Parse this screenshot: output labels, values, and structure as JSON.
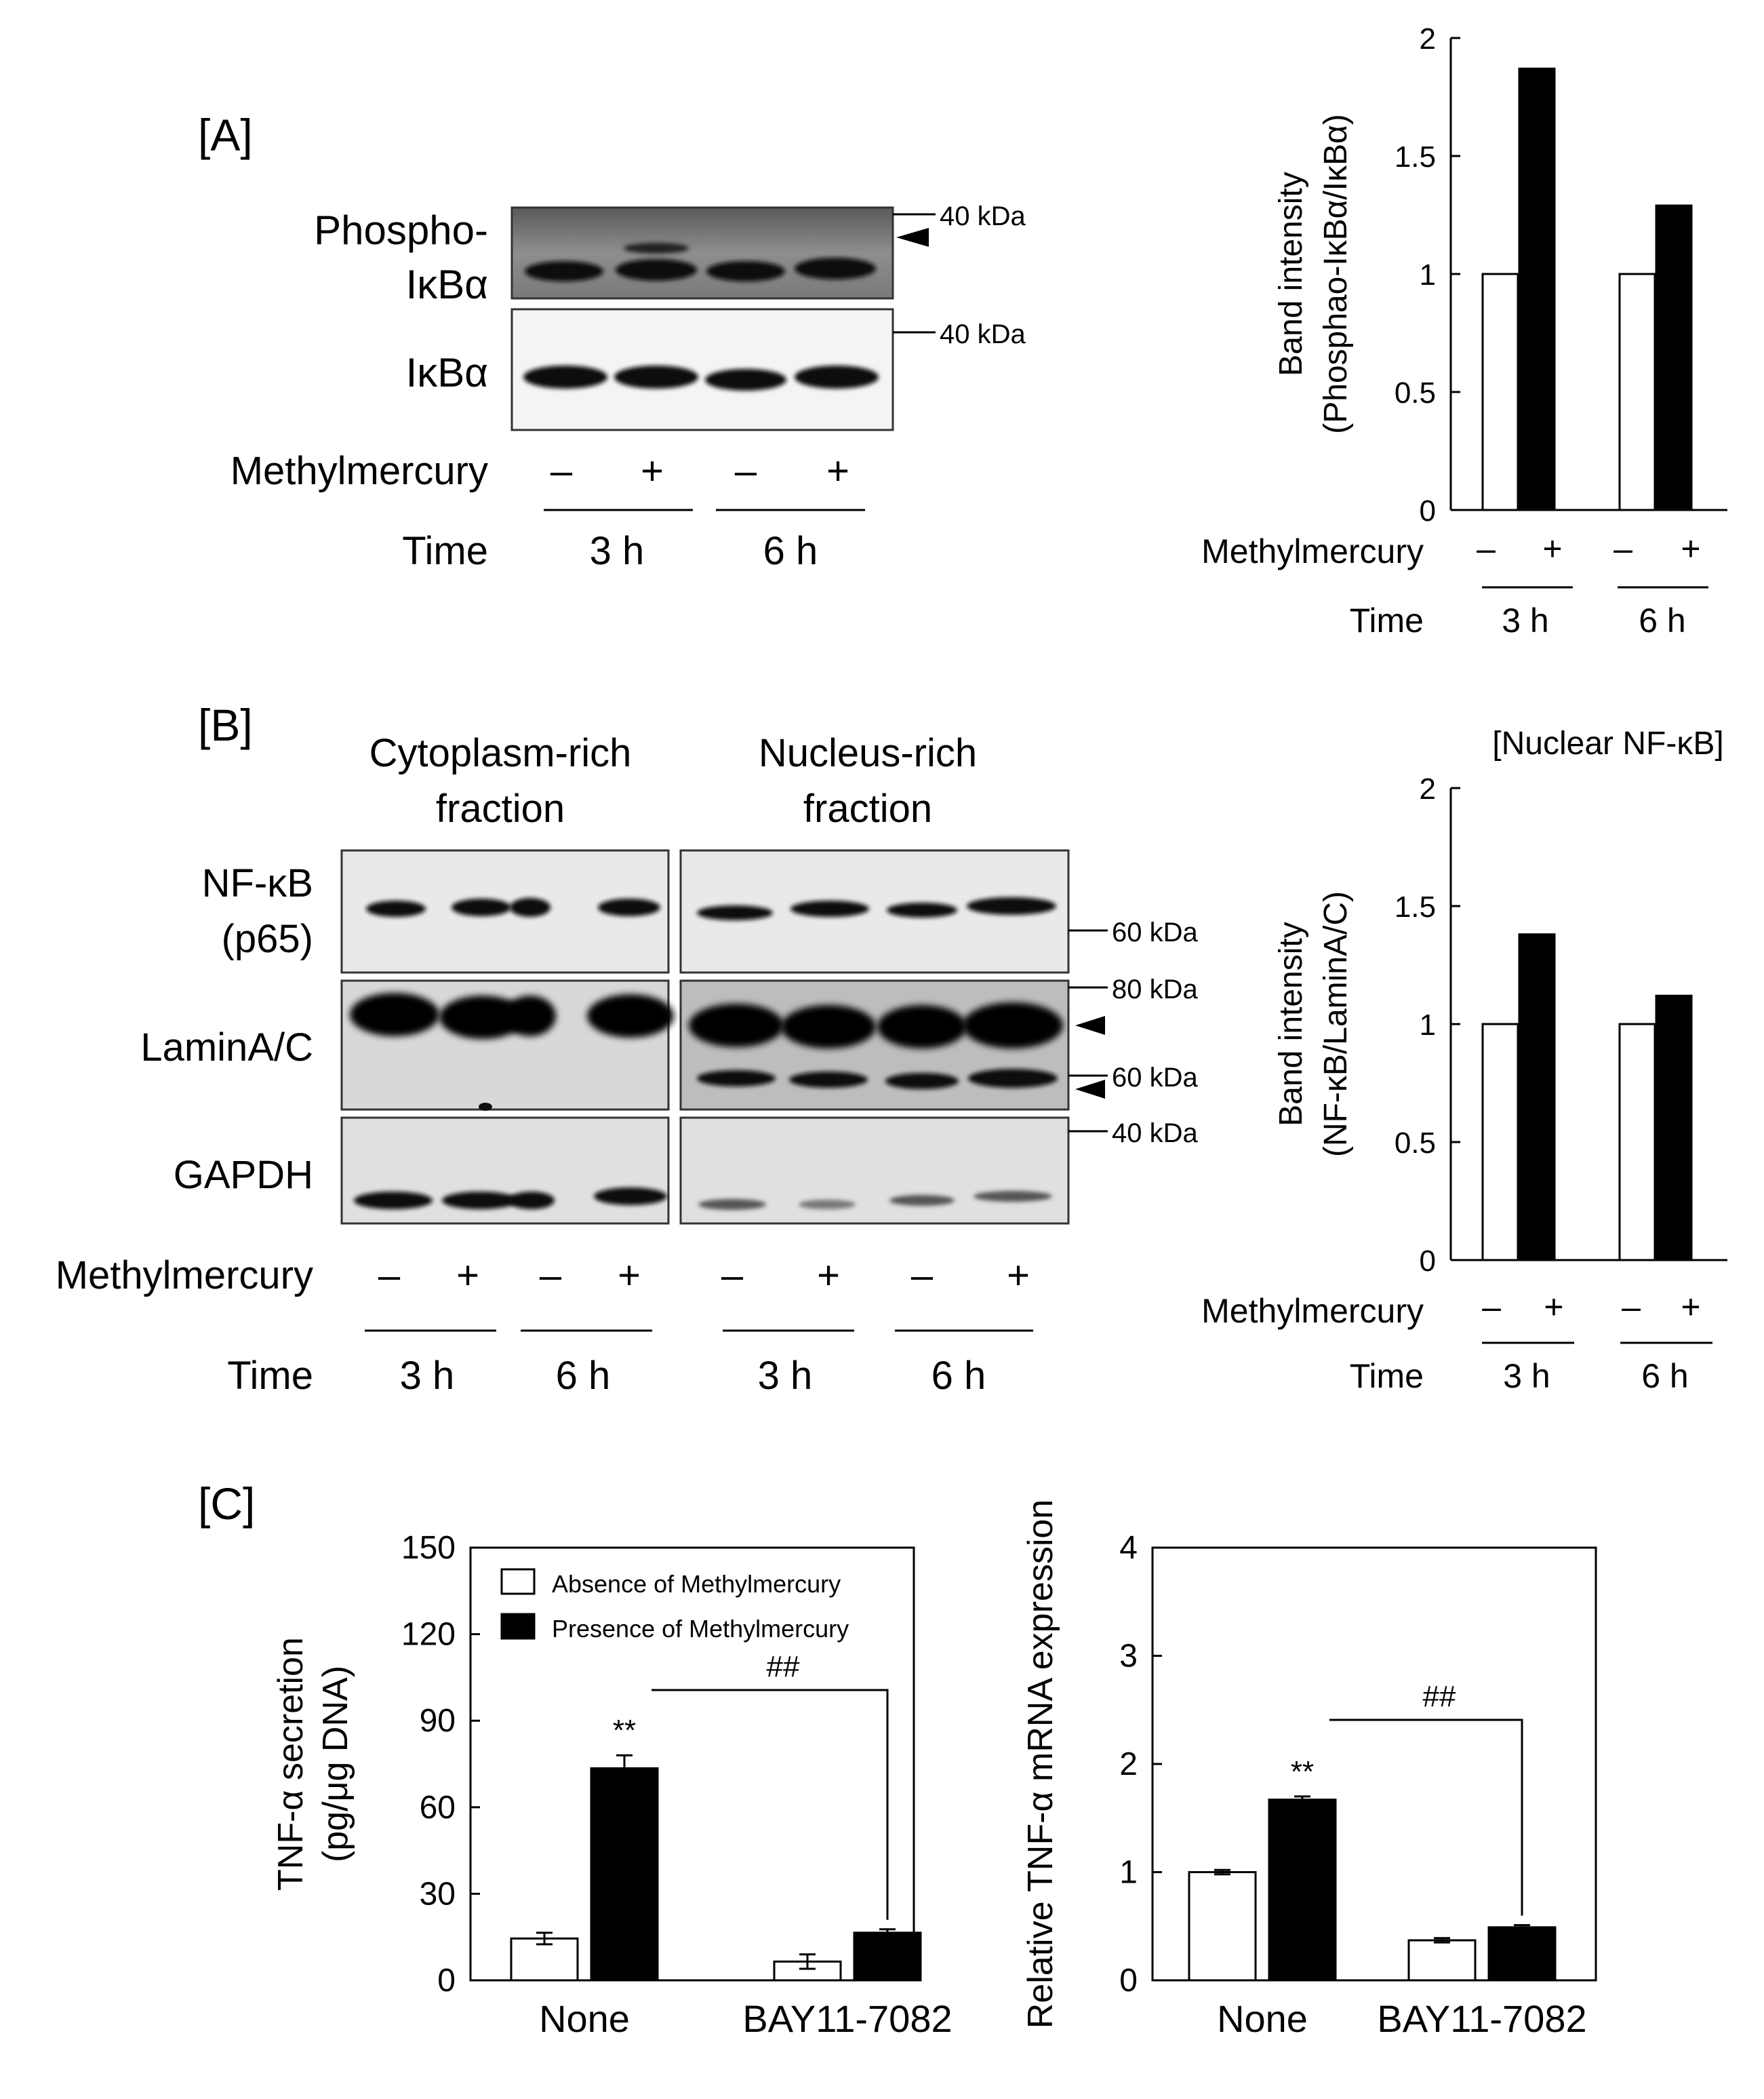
{
  "panels": {
    "A": "[A]",
    "B": "[B]",
    "C": "[C]"
  },
  "common": {
    "methylmercury": "Methylmercury",
    "time": "Time",
    "minus": "–",
    "plus": "+",
    "t3": "3 h",
    "t6": "6 h"
  },
  "A": {
    "blot_labels": {
      "phospho_line1": "Phospho-",
      "phospho_line2": "IκBα",
      "total": "IκBα"
    },
    "markers": {
      "m1": "40 kDa",
      "m2": "40 kDa"
    }
  },
  "B": {
    "fraction_cyto_line1": "Cytoplasm-rich",
    "fraction_cyto_line2": "fraction",
    "fraction_nuc_line1": "Nucleus-rich",
    "fraction_nuc_line2": "fraction",
    "blot_labels": {
      "nfkb_line1": "NF-κB",
      "nfkb_line2": "(p65)",
      "lamin": "LaminA/C",
      "gapdh": "GAPDH"
    },
    "markers": {
      "m60a": "60 kDa",
      "m80": "80 kDa",
      "m60b": "60 kDa",
      "m40": "40 kDa"
    }
  },
  "chart_data": [
    {
      "id": "A-bar",
      "type": "bar",
      "title": "",
      "ylabel_line1": "Band intensity",
      "ylabel_line2": "(Phosphao-IκBα/IκBα)",
      "ylim": [
        0,
        2
      ],
      "yticks": [
        "0",
        "0.5",
        "1",
        "1.5",
        "2"
      ],
      "groups": [
        "3 h",
        "6 h"
      ],
      "series": [
        {
          "values": [
            1.0,
            1.0
          ],
          "color": "#ffffff"
        },
        {
          "values": [
            1.87,
            1.29
          ],
          "color": "#000000"
        }
      ]
    },
    {
      "id": "B-bar",
      "type": "bar",
      "title": "[Nuclear NF-κB]",
      "ylabel_line1": "Band intensity",
      "ylabel_line2": "(NF-κB/LaminA/C)",
      "ylim": [
        0,
        2
      ],
      "yticks": [
        "0",
        "0.5",
        "1",
        "1.5",
        "2"
      ],
      "groups": [
        "3 h",
        "6 h"
      ],
      "series": [
        {
          "values": [
            1.0,
            1.0
          ],
          "color": "#ffffff"
        },
        {
          "values": [
            1.38,
            1.12
          ],
          "color": "#000000"
        }
      ]
    },
    {
      "id": "C-left",
      "type": "bar",
      "title": "",
      "ylabel_line1": "TNF-α secretion",
      "ylabel_line2": "(pg/μg DNA)",
      "ylim": [
        0,
        150
      ],
      "yticks": [
        "0",
        "30",
        "60",
        "90",
        "120",
        "150"
      ],
      "categories": [
        "None",
        "BAY11-7082"
      ],
      "series": [
        {
          "name": "Absence of Methylmercury",
          "values": [
            14.5,
            6.5
          ],
          "errors": [
            2,
            2.5
          ],
          "color": "#ffffff"
        },
        {
          "name": "Presence of Methylmercury",
          "values": [
            73.5,
            16.5
          ],
          "errors": [
            4.5,
            1.2
          ],
          "color": "#000000"
        }
      ],
      "annotations": {
        "significance": "**",
        "comparison": "##"
      }
    },
    {
      "id": "C-right",
      "type": "bar",
      "title": "",
      "ylabel_line1": "Relative TNF-α mRNA expression",
      "ylim": [
        0,
        4
      ],
      "yticks": [
        "0",
        "1",
        "2",
        "3",
        "4"
      ],
      "categories": [
        "None",
        "BAY11-7082"
      ],
      "series": [
        {
          "values": [
            1.0,
            0.37
          ],
          "errors": [
            0.02,
            0.02
          ],
          "color": "#ffffff"
        },
        {
          "values": [
            1.67,
            0.49
          ],
          "errors": [
            0.03,
            0.02
          ],
          "color": "#000000"
        }
      ],
      "annotations": {
        "significance": "**",
        "comparison": "##"
      }
    }
  ]
}
